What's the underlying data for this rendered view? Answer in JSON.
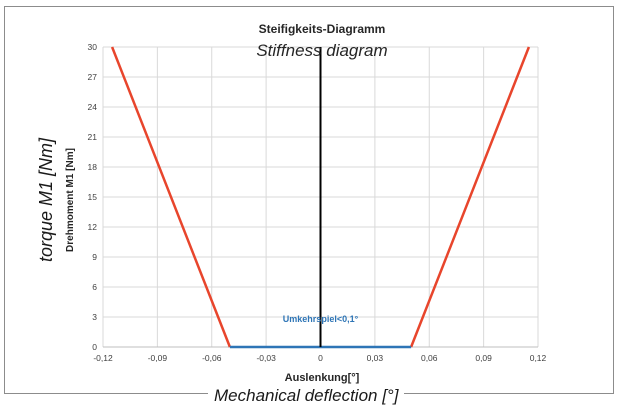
{
  "chart_data": {
    "type": "line",
    "title": "Steifigkeits-Diagramm",
    "title_translation": "Stiffness diagram",
    "xlabel": "Auslenkung[°]",
    "xlabel_translation": "Mechanical deflection [°]",
    "ylabel": "Drehmoment M1 [Nm]",
    "ylabel_translation": "torque M1 [Nm]",
    "xlim": [
      -0.12,
      0.12
    ],
    "ylim": [
      0,
      30
    ],
    "x_ticks": [
      "-0,12",
      "-0,09",
      "-0,06",
      "-0,03",
      "0",
      "0,03",
      "0,06",
      "0,09",
      "0,12"
    ],
    "y_ticks": [
      "0",
      "3",
      "6",
      "9",
      "12",
      "15",
      "18",
      "21",
      "24",
      "27",
      "30"
    ],
    "grid": true,
    "series": [
      {
        "color": "#e8452c",
        "x": [
          -0.115,
          -0.05
        ],
        "y": [
          30,
          0
        ]
      },
      {
        "color": "#e8452c",
        "x": [
          0.05,
          0.115
        ],
        "y": [
          0,
          30
        ]
      },
      {
        "color": "#2e75b6",
        "x": [
          -0.05,
          0.05
        ],
        "y": [
          0,
          0
        ]
      },
      {
        "color": "#000000",
        "x": [
          0,
          0
        ],
        "y": [
          0,
          30
        ]
      }
    ],
    "annotations": [
      {
        "text": "Umkehrspiel<0,1°",
        "x": 0,
        "y": 2.5,
        "color": "#2e75b6"
      }
    ]
  }
}
